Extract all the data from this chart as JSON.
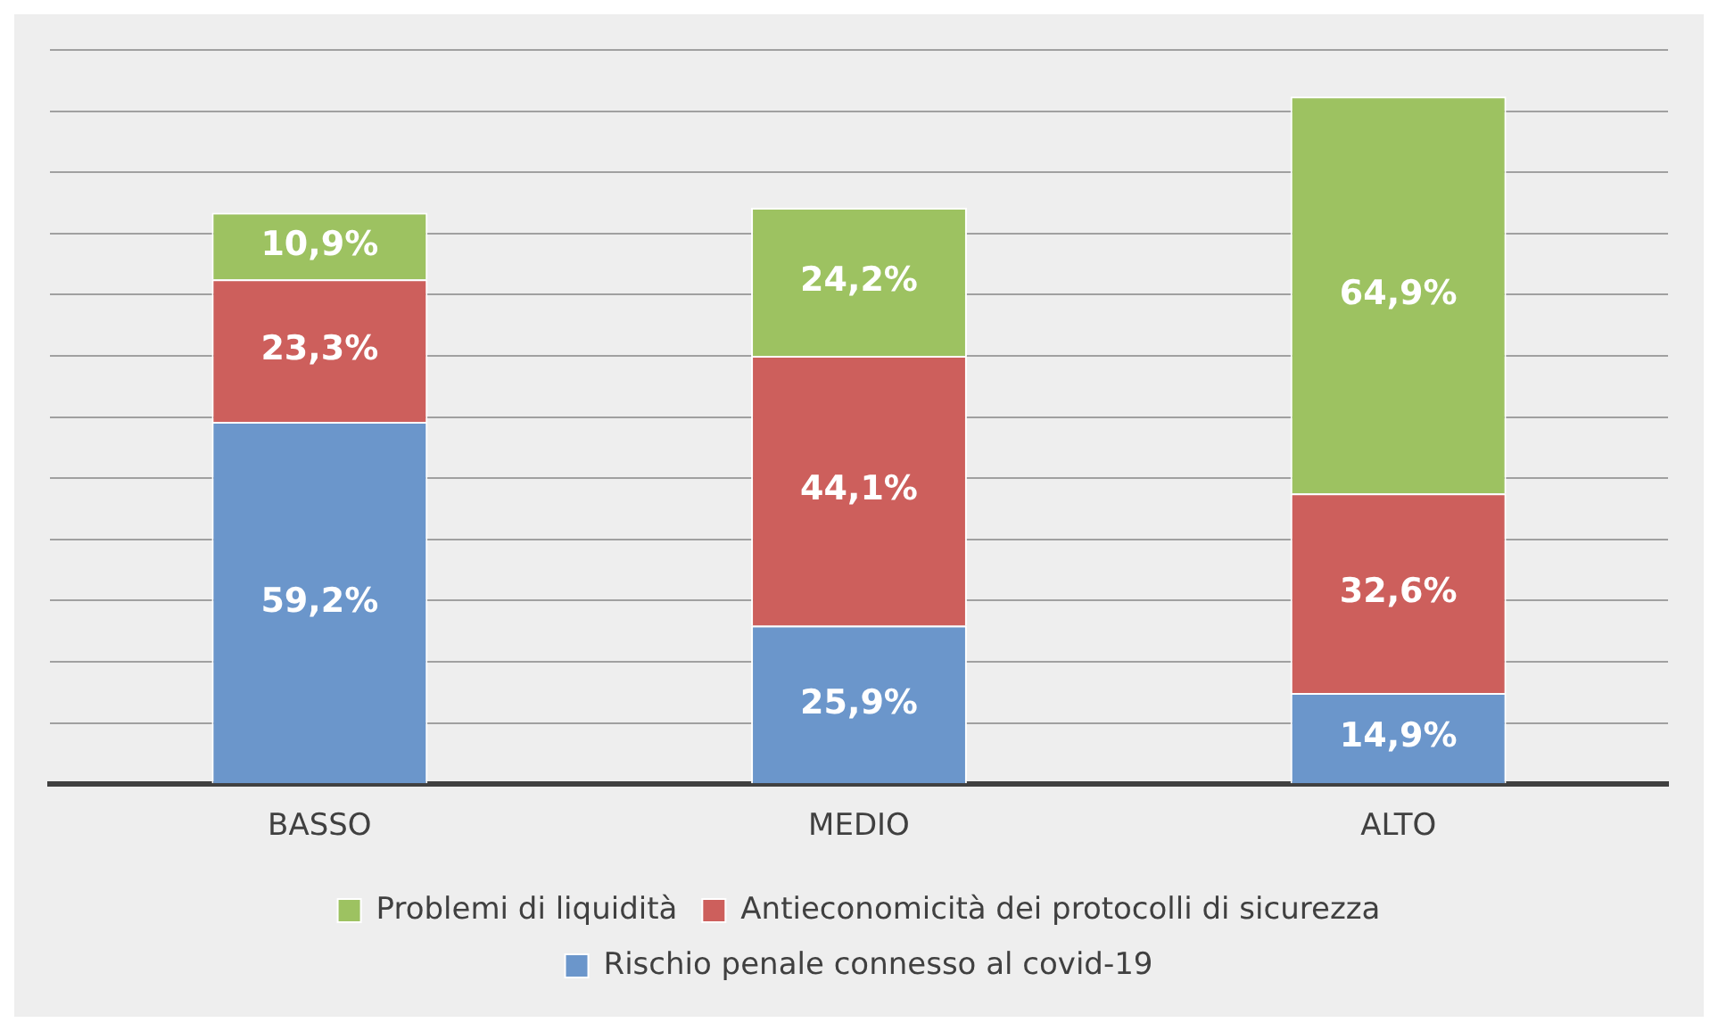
{
  "chart_data": {
    "type": "bar",
    "stacked": true,
    "categories": [
      "BASSO",
      "MEDIO",
      "ALTO"
    ],
    "series": [
      {
        "name": "Rischio penale connesso al covid-19",
        "color": "#6b96cb",
        "values": [
          59.2,
          25.9,
          14.9
        ],
        "value_labels": [
          "59,2%",
          "25,9%",
          "14,9%"
        ]
      },
      {
        "name": "Antieconomicità dei protocolli di sicurezza",
        "color": "#cd5f5c",
        "values": [
          23.3,
          44.1,
          32.6
        ],
        "value_labels": [
          "23,3%",
          "44,1%",
          "32,6%"
        ]
      },
      {
        "name": "Problemi di liquidità",
        "color": "#9dc261",
        "values": [
          10.9,
          24.2,
          64.9
        ],
        "value_labels": [
          "10,9%",
          "24,2%",
          "64,9%"
        ]
      }
    ],
    "ylim": [
      0,
      120
    ],
    "yticks": [
      {
        "value": 0,
        "label": null
      },
      {
        "value": 10,
        "label": null
      },
      {
        "value": 20,
        "label": null
      },
      {
        "value": 30,
        "label": null
      },
      {
        "value": 40,
        "label": null
      },
      {
        "value": 50,
        "label": null
      },
      {
        "value": 60,
        "label": null
      },
      {
        "value": 70,
        "label": null
      },
      {
        "value": 80,
        "label": null
      },
      {
        "value": 90,
        "label": null
      },
      {
        "value": 100,
        "label": null
      },
      {
        "value": 110,
        "label": null
      },
      {
        "value": 120,
        "label": null
      }
    ],
    "tick_labels": "x",
    "grid": "y",
    "legend": "bottom"
  }
}
